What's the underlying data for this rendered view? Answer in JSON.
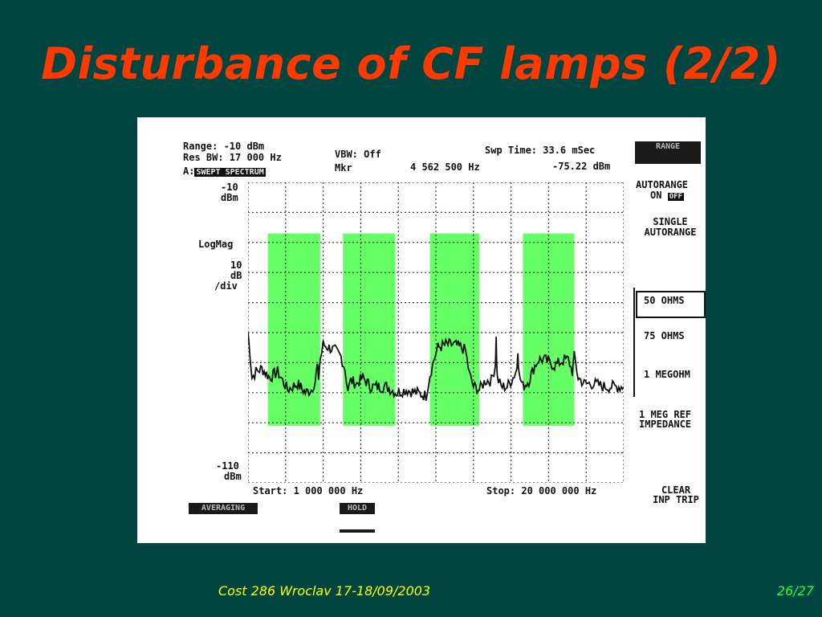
{
  "slide": {
    "title": "Disturbance of CF lamps (2/2)",
    "footer_left": "Cost 286 Wroclav 17-18/09/2003",
    "footer_right": "26/27"
  },
  "colors": {
    "background": "#004540",
    "title": "#ff3a00",
    "highlight": "#66ff66",
    "footer_left": "#ffff00",
    "footer_right": "#22ff44"
  },
  "analyzer": {
    "range": "Range: -10 dBm",
    "res_bw": "Res BW: 17 000 Hz",
    "trace_prefix": "A:",
    "trace_mode": "SWEPT SPECTRUM",
    "vbw": "VBW: Off",
    "mkr": "Mkr",
    "mkr_freq": "4 562 500 Hz",
    "swp_time": "Swp Time: 33.6 mSec",
    "mkr_level": "-75.22 dBm",
    "top_level": "-10",
    "top_unit": "dBm",
    "logmag": "LogMag",
    "scale_value": "10",
    "scale_unit": "dB",
    "scale_div": "/div",
    "bottom_level": "-110",
    "bottom_unit": "dBm",
    "start": "Start: 1 000 000 Hz",
    "stop": "Stop: 20 000 000 Hz",
    "bottom_left_label": "AVERAGING",
    "bottom_mid_label": "HOLD"
  },
  "softkeys": {
    "range_key": "RANGE",
    "autorange_1": "AUTORANGE",
    "autorange_2_prefix": "ON",
    "autorange_2_state": "OFF",
    "single_1": "SINGLE",
    "single_2": "AUTORANGE",
    "ohm50": "50 OHMS",
    "ohm75": "75 OHMS",
    "meg": "1 MEGOHM",
    "ref_1": "1 MEG REF",
    "ref_2": "IMPEDANCE",
    "clear_1": "CLEAR",
    "clear_2": "INP TRIP"
  },
  "chart_data": {
    "type": "line",
    "title": "",
    "xlabel": "",
    "ylabel": "",
    "xlim": [
      1000000,
      20000000
    ],
    "ylim": [
      -110,
      -10
    ],
    "y_units": "dBm",
    "x_units": "Hz",
    "grid": true,
    "grid_divisions": [
      10,
      10
    ],
    "highlight_bands": [
      {
        "start": 2000000,
        "end": 4650000
      },
      {
        "start": 5800000,
        "end": 8450000
      },
      {
        "start": 10200000,
        "end": 12700000
      },
      {
        "start": 14900000,
        "end": 17500000
      }
    ],
    "series": [
      {
        "x": [
          1000000,
          1100000,
          1200000,
          1400000,
          1700000,
          2100000,
          2500000,
          3000000,
          3500000,
          3900000,
          4200000,
          4400000,
          4500000,
          4562500,
          4650000,
          4800000,
          5100000,
          5400000,
          5700000,
          5900000,
          6050000,
          6200000,
          6500000,
          6800000,
          7200000,
          7600000,
          8000000,
          8500000,
          9000000,
          9500000,
          10000000,
          10200000,
          10400000,
          10600000,
          11000000,
          11400000,
          11800000,
          12000000,
          12200000,
          12400000,
          12700000,
          13000000,
          13300000,
          13500000,
          13550000,
          13600000,
          13800000,
          14100000,
          14400000,
          14600000,
          14650000,
          14700000,
          14900000,
          15200000,
          15500000,
          15700000,
          16000000,
          16500000,
          17000000,
          17200000,
          17400000,
          17500000,
          17700000,
          18000000,
          18500000,
          19000000,
          19500000,
          20000000
        ],
        "y": [
          -60,
          -67,
          -75,
          -73,
          -72,
          -75,
          -73,
          -79,
          -77,
          -80,
          -79,
          -76,
          -71,
          -75,
          -69,
          -64,
          -65,
          -66,
          -68,
          -72,
          -79,
          -76,
          -77,
          -75,
          -78,
          -78,
          -78,
          -80,
          -79,
          -80,
          -81,
          -74,
          -69,
          -65,
          -64,
          -64,
          -65,
          -66,
          -74,
          -78,
          -79,
          -76,
          -76,
          -71,
          -62,
          -75,
          -78,
          -78,
          -75,
          -72,
          -65,
          -74,
          -78,
          -76,
          -71,
          -69,
          -69,
          -71,
          -69,
          -69,
          -73,
          -68,
          -75,
          -77,
          -77,
          -78,
          -78,
          -78
        ]
      }
    ]
  }
}
